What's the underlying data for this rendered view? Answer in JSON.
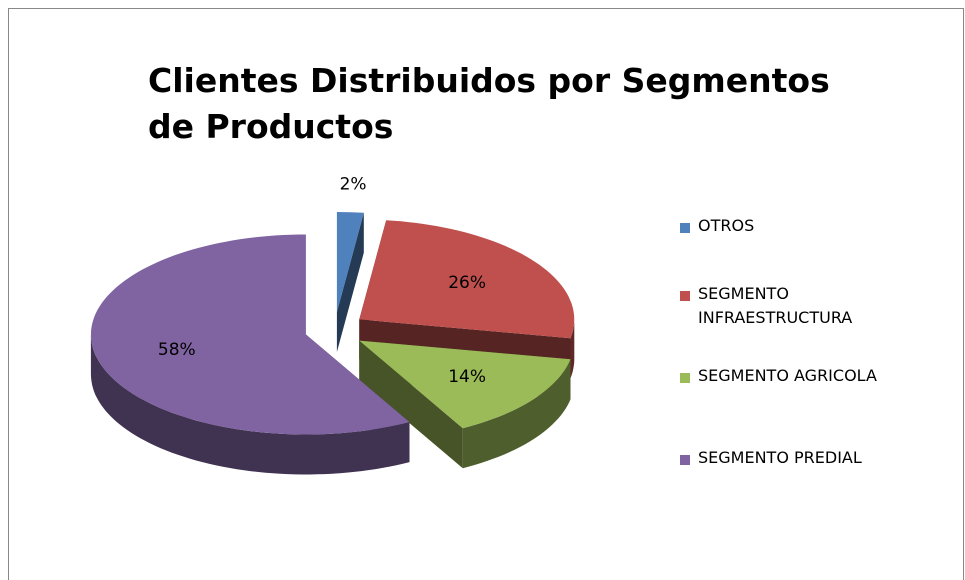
{
  "chart_data": {
    "type": "pie",
    "title": "Clientes Distribuidos por Segmentos de Productos",
    "categories": [
      "OTROS",
      "SEGMENTO INFRAESTRUCTURA",
      "SEGMENTO AGRICOLA",
      "SEGMENTO PREDIAL"
    ],
    "values": [
      2,
      26,
      14,
      58
    ],
    "value_labels": [
      "2%",
      "26%",
      "14%",
      "58%"
    ],
    "colors": [
      "#4f81bd",
      "#c0504d",
      "#9bbb59",
      "#8064a2"
    ],
    "legend": "right"
  }
}
